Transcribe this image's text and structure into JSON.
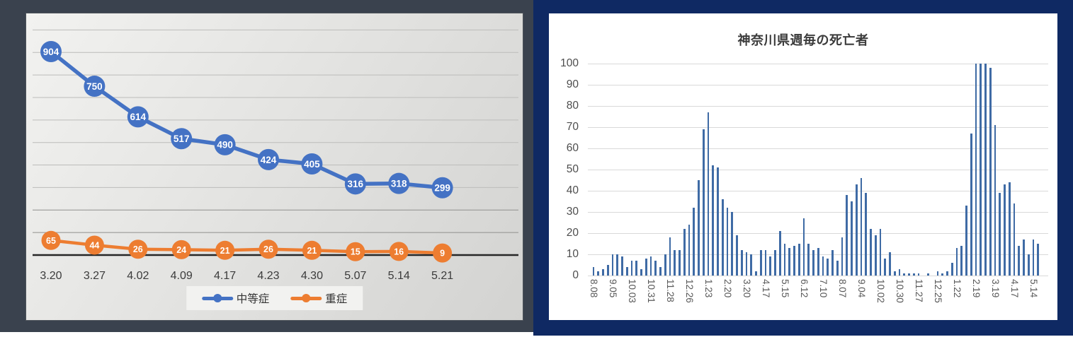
{
  "page": {
    "background": "#ffffff"
  },
  "chart_data": [
    {
      "type": "line",
      "title": "",
      "categories": [
        "3.20",
        "3.27",
        "4.02",
        "4.09",
        "4.17",
        "4.23",
        "4.30",
        "5.07",
        "5.14",
        "5.21"
      ],
      "series": [
        {
          "name": "中等症",
          "color": "#4472C4",
          "values": [
            904,
            750,
            614,
            517,
            490,
            424,
            405,
            316,
            318,
            299
          ]
        },
        {
          "name": "重症",
          "color": "#ED7D31",
          "values": [
            65,
            44,
            26,
            24,
            21,
            26,
            21,
            15,
            16,
            9
          ]
        }
      ],
      "ylim": [
        0,
        1000
      ],
      "grid_step": 100,
      "grid": true,
      "data_labels": true,
      "legend_position": "bottom",
      "panel_bg": "#3A424E",
      "grid_color": "#bcbcba",
      "grid_color_dark": "#8f8f8d",
      "axis_color": "#262626",
      "label_color": "#3b3b3b",
      "legend_bg": "#f2f2f0",
      "data_label_color": "#ffffff"
    },
    {
      "type": "bar",
      "title": "神奈川県週毎の死亡者",
      "x_tick_labels": [
        "8.08",
        "9.05",
        "10.03",
        "10.31",
        "11.28",
        "12.26",
        "1.23",
        "2.20",
        "3.20",
        "4.17",
        "5.15",
        "6.12",
        "7.10",
        "8.07",
        "9.04",
        "10.02",
        "10.30",
        "11.27",
        "12.25",
        "1.22",
        "2.19",
        "3.19",
        "4.17",
        "5.14"
      ],
      "tick_every": 4,
      "values": [
        4,
        2,
        3,
        5,
        10,
        10,
        9,
        4,
        7,
        7,
        3,
        8,
        9,
        7,
        4,
        10,
        18,
        12,
        12,
        22,
        24,
        32,
        45,
        69,
        77,
        52,
        51,
        36,
        32,
        30,
        19,
        12,
        11,
        10,
        2,
        12,
        12,
        9,
        12,
        21,
        15,
        13,
        14,
        15,
        27,
        15,
        12,
        13,
        9,
        8,
        12,
        7,
        18,
        38,
        35,
        43,
        46,
        39,
        22,
        19,
        22,
        8,
        11,
        2,
        3,
        1,
        1,
        1,
        1,
        0,
        1,
        0,
        2,
        1,
        2,
        6,
        13,
        14,
        33,
        67,
        100,
        100,
        100,
        98,
        71,
        39,
        43,
        44,
        34,
        14,
        17,
        10,
        17,
        15
      ],
      "ylim": [
        0,
        100
      ],
      "ytick_step": 10,
      "grid": true,
      "legend_position": "none",
      "panel_bg": "#0F2963",
      "card_bg": "#ffffff",
      "bar_color": "#3F6BA5",
      "grid_color": "#d9d9d9",
      "title_color": "#3b3b3b",
      "ytick_color": "#4d4d4d",
      "xtick_color": "#595959"
    }
  ]
}
